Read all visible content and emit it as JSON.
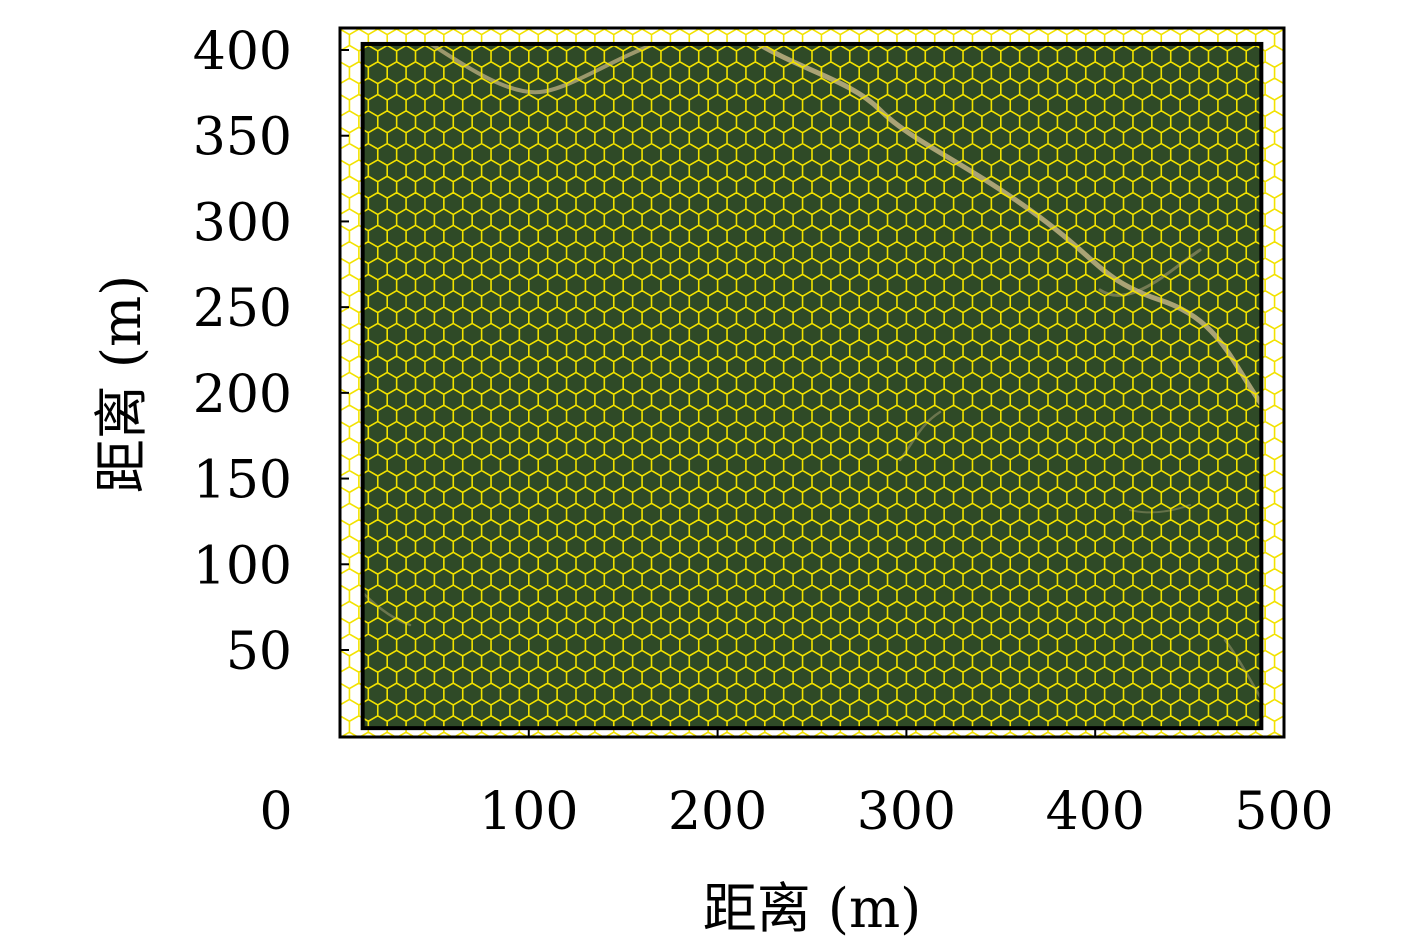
{
  "chart_data": {
    "type": "heatmap",
    "title": "",
    "xlabel": "距离 (m)",
    "ylabel": "距离 (m)",
    "xlim": [
      0,
      500
    ],
    "ylim": [
      0,
      400
    ],
    "x_ticks": [
      0,
      100,
      200,
      300,
      400,
      500
    ],
    "x_tick_labels": [
      "0",
      "100",
      "200",
      "300",
      "400",
      "500"
    ],
    "y_ticks": [
      50,
      100,
      150,
      200,
      250,
      300,
      350,
      400
    ],
    "y_tick_labels": [
      "50",
      "100",
      "150",
      "200",
      "250",
      "300",
      "350",
      "400"
    ],
    "image_extent": {
      "x": [
        12,
        488
      ],
      "y": [
        5,
        391
      ]
    },
    "grid": false,
    "overlay": {
      "shape": "hexagonal grid",
      "hex_width": 10,
      "line_color": "#f2e200"
    },
    "background": {
      "kind": "aerial image",
      "vegetation_color": "#2f4a27",
      "road_color": "#c9b98a"
    }
  }
}
